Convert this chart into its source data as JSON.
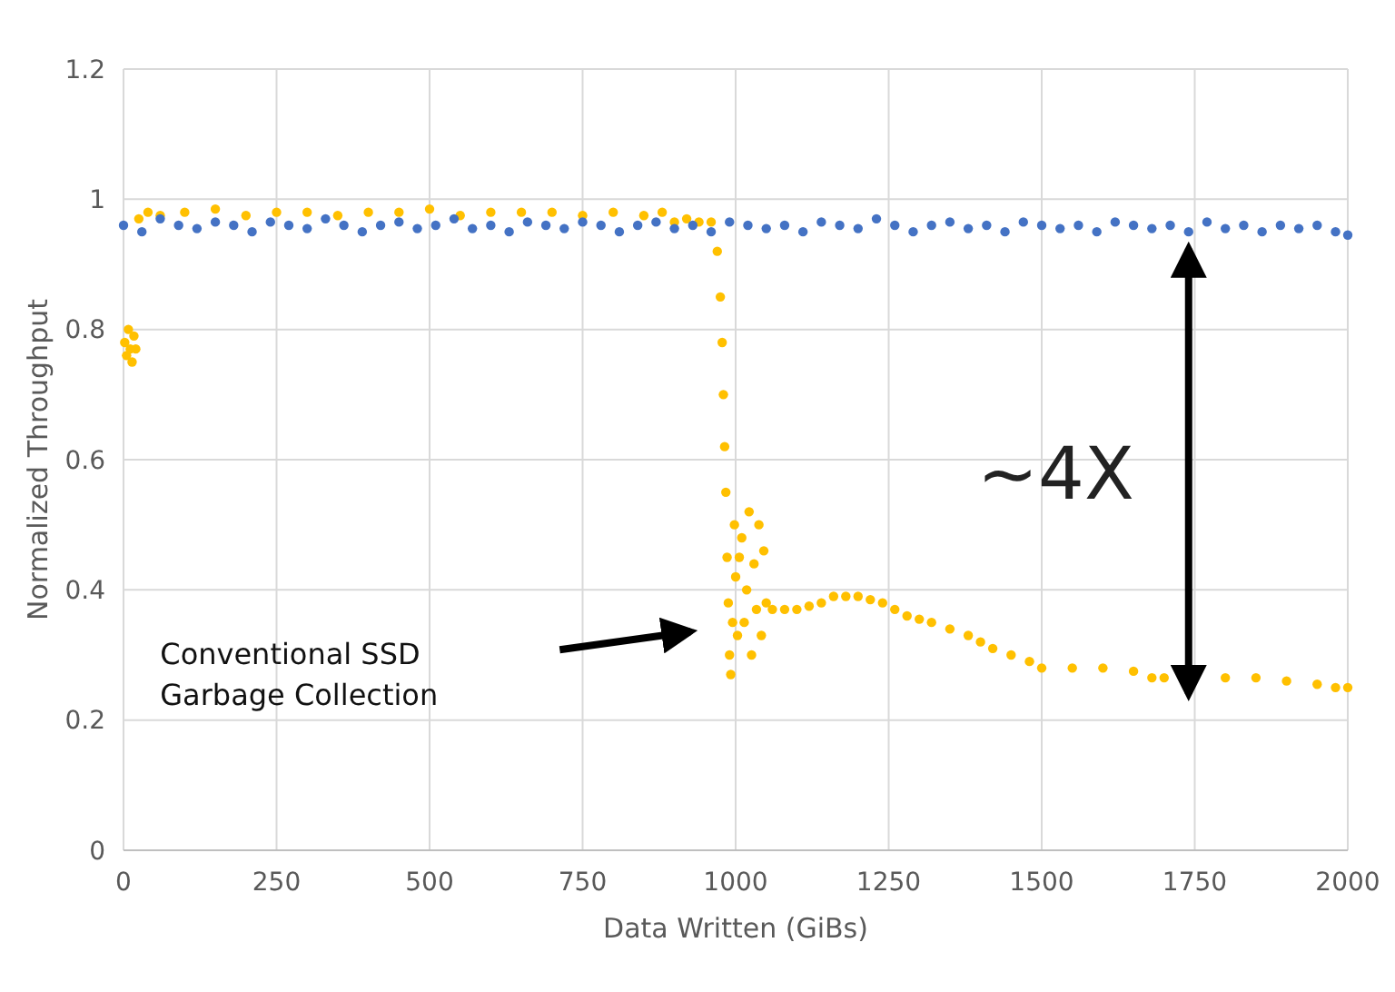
{
  "chart_data": {
    "type": "scatter",
    "xlabel": "Data Written (GiBs)",
    "ylabel": "Normalized Throughput",
    "xlim": [
      0,
      2000
    ],
    "xticks": [
      0,
      250,
      500,
      750,
      1000,
      1250,
      1500,
      1750,
      2000
    ],
    "ylim": [
      0,
      1.2
    ],
    "yticks": [
      0,
      0.2,
      0.4,
      0.6,
      0.8,
      1,
      1.2
    ],
    "grid": true,
    "marker": "circle",
    "annotations": [
      "~4X",
      "Conventional SSD Garbage Collection"
    ],
    "series": [
      {
        "color": "#ffc000",
        "x": [
          2,
          5,
          8,
          11,
          14,
          17,
          20,
          25,
          40,
          60,
          100,
          150,
          200,
          250,
          300,
          350,
          400,
          450,
          500,
          550,
          600,
          650,
          700,
          750,
          800,
          850,
          880,
          900,
          920,
          940,
          960,
          970,
          975,
          978,
          980,
          982,
          984,
          986,
          988,
          990,
          992,
          995,
          998,
          1000,
          1003,
          1006,
          1010,
          1014,
          1018,
          1022,
          1026,
          1030,
          1034,
          1038,
          1042,
          1046,
          1050,
          1060,
          1080,
          1100,
          1120,
          1140,
          1160,
          1180,
          1200,
          1220,
          1240,
          1260,
          1280,
          1300,
          1320,
          1350,
          1380,
          1400,
          1420,
          1450,
          1480,
          1500,
          1550,
          1600,
          1650,
          1680,
          1700,
          1800,
          1850,
          1900,
          1950,
          1980,
          2000
        ],
        "values": [
          0.78,
          0.76,
          0.8,
          0.77,
          0.75,
          0.79,
          0.77,
          0.97,
          0.98,
          0.975,
          0.98,
          0.985,
          0.975,
          0.98,
          0.98,
          0.975,
          0.98,
          0.98,
          0.985,
          0.975,
          0.98,
          0.98,
          0.98,
          0.975,
          0.98,
          0.975,
          0.98,
          0.965,
          0.97,
          0.965,
          0.965,
          0.92,
          0.85,
          0.78,
          0.7,
          0.62,
          0.55,
          0.45,
          0.38,
          0.3,
          0.27,
          0.35,
          0.5,
          0.42,
          0.33,
          0.45,
          0.48,
          0.35,
          0.4,
          0.52,
          0.3,
          0.44,
          0.37,
          0.5,
          0.33,
          0.46,
          0.38,
          0.37,
          0.37,
          0.37,
          0.375,
          0.38,
          0.39,
          0.39,
          0.39,
          0.385,
          0.38,
          0.37,
          0.36,
          0.355,
          0.35,
          0.34,
          0.33,
          0.32,
          0.31,
          0.3,
          0.29,
          0.28,
          0.28,
          0.28,
          0.275,
          0.265,
          0.265,
          0.265,
          0.265,
          0.26,
          0.255,
          0.25,
          0.25
        ]
      },
      {
        "color": "#4472c4",
        "x": [
          0,
          30,
          60,
          90,
          120,
          150,
          180,
          210,
          240,
          270,
          300,
          330,
          360,
          390,
          420,
          450,
          480,
          510,
          540,
          570,
          600,
          630,
          660,
          690,
          720,
          750,
          780,
          810,
          840,
          870,
          900,
          930,
          960,
          990,
          1020,
          1050,
          1080,
          1110,
          1140,
          1170,
          1200,
          1230,
          1260,
          1290,
          1320,
          1350,
          1380,
          1410,
          1440,
          1470,
          1500,
          1530,
          1560,
          1590,
          1620,
          1650,
          1680,
          1710,
          1740,
          1770,
          1800,
          1830,
          1860,
          1890,
          1920,
          1950,
          1980,
          2000
        ],
        "values": [
          0.96,
          0.95,
          0.97,
          0.96,
          0.955,
          0.965,
          0.96,
          0.95,
          0.965,
          0.96,
          0.955,
          0.97,
          0.96,
          0.95,
          0.96,
          0.965,
          0.955,
          0.96,
          0.97,
          0.955,
          0.96,
          0.95,
          0.965,
          0.96,
          0.955,
          0.965,
          0.96,
          0.95,
          0.96,
          0.965,
          0.955,
          0.96,
          0.95,
          0.965,
          0.96,
          0.955,
          0.96,
          0.95,
          0.965,
          0.96,
          0.955,
          0.97,
          0.96,
          0.95,
          0.96,
          0.965,
          0.955,
          0.96,
          0.95,
          0.965,
          0.96,
          0.955,
          0.96,
          0.95,
          0.965,
          0.96,
          0.955,
          0.96,
          0.95,
          0.965,
          0.955,
          0.96,
          0.95,
          0.96,
          0.955,
          0.96,
          0.95,
          0.945
        ]
      }
    ]
  }
}
